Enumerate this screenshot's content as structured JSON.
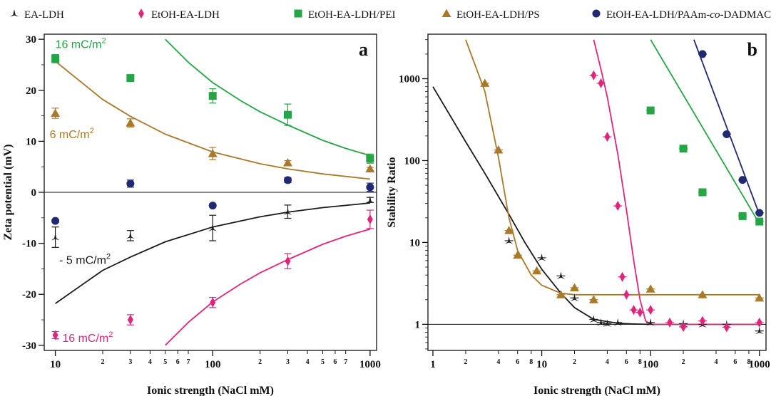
{
  "colors": {
    "EA-LDH": "#1a1a1a",
    "EtOH-EA-LDH": "#e0267a",
    "EtOH-EA-LDH/PEI": "#25a545",
    "EtOH-EA-LDH/PS": "#a87a2a",
    "EtOH-EA-LDH/PAAm-co-DADMAC": "#1f2a70"
  },
  "legend": [
    {
      "key": "EA-LDH",
      "text": "EA-LDH",
      "marker": "star"
    },
    {
      "key": "EtOH-EA-LDH",
      "text": "EtOH-EA-LDH",
      "marker": "diamond"
    },
    {
      "key": "EtOH-EA-LDH/PEI",
      "text": "EtOH-EA-LDH/PEI",
      "marker": "square"
    },
    {
      "key": "EtOH-EA-LDH/PS",
      "text": "EtOH-EA-LDH/PS",
      "marker": "triangle"
    },
    {
      "key": "EtOH-EA-LDH/PAAm-co-DADMAC",
      "text_prefix": "EtOH-EA-LDH/PAAm-",
      "text_italic": "co",
      "text_suffix": "-DADMAC",
      "marker": "circle"
    }
  ],
  "chart_data": [
    {
      "type": "scatter",
      "panel_label": "a",
      "xlabel": "Ionic strength (NaCl mM)",
      "ylabel": "Zeta potential (mV)",
      "xscale": "log",
      "xlim": [
        8.5,
        1100
      ],
      "ylim": [
        -31,
        31
      ],
      "x_major_ticks": [
        10,
        100,
        1000
      ],
      "x_major_labels": [
        "10",
        "100",
        "1000"
      ],
      "x_minor_ticks": [
        20,
        30,
        40,
        50,
        60,
        70,
        200,
        300,
        400,
        500,
        600,
        700
      ],
      "x_minor_labels": [
        "2",
        "3",
        "4",
        "5",
        "6",
        "7",
        "2",
        "3",
        "4",
        "5",
        "6",
        "7"
      ],
      "y_ticks": [
        -30,
        -20,
        -10,
        0,
        10,
        20,
        30
      ],
      "y_tick_labels": [
        "-30",
        "-20",
        "-10",
        "0",
        "10",
        "20",
        "30"
      ],
      "reference_line_y": 0,
      "series": [
        {
          "key": "EA-LDH",
          "marker": "star",
          "x": [
            10,
            30,
            100,
            300,
            1000
          ],
          "y": [
            -8.8,
            -8.5,
            -7,
            -3.8,
            -1.5
          ],
          "err": [
            2,
            1,
            2.5,
            1.3,
            0.5
          ]
        },
        {
          "key": "EtOH-EA-LDH",
          "marker": "diamond",
          "x": [
            10,
            30,
            100,
            300,
            1000
          ],
          "y": [
            -28,
            -25,
            -21.6,
            -13.5,
            -5.3
          ],
          "err": [
            0.7,
            1,
            1,
            1.5,
            1.8
          ]
        },
        {
          "key": "EtOH-EA-LDH/PEI",
          "marker": "square",
          "x": [
            10,
            30,
            100,
            300,
            1000
          ],
          "y": [
            26.2,
            22.4,
            18.9,
            15.2,
            6.6
          ],
          "err": [
            0.8,
            0.4,
            1.4,
            2.1,
            0.9
          ]
        },
        {
          "key": "EtOH-EA-LDH/PS",
          "marker": "triangle",
          "x": [
            10,
            30,
            100,
            300,
            1000
          ],
          "y": [
            15.5,
            13.6,
            7.6,
            5.8,
            4.6
          ],
          "err": [
            1,
            0.8,
            1.2,
            0.4,
            0.3
          ]
        },
        {
          "key": "EtOH-EA-LDH/PAAm-co-DADMAC",
          "marker": "circle",
          "x": [
            10,
            30,
            100,
            300,
            1000
          ],
          "y": [
            -5.6,
            1.7,
            -2.6,
            2.4,
            1
          ],
          "err": [
            0.3,
            0.7,
            0.3,
            0.5,
            0.8
          ]
        }
      ],
      "fit_curves": [
        {
          "key": "EA-LDH",
          "x": [
            10,
            20,
            30,
            50,
            100,
            200,
            300,
            500,
            1000
          ],
          "y": [
            -21.8,
            -15.3,
            -12.7,
            -9.7,
            -6.8,
            -4.8,
            -3.9,
            -3,
            -2.1
          ]
        },
        {
          "key": "EtOH-EA-LDH",
          "x": [
            50,
            70,
            100,
            150,
            200,
            300,
            500,
            700,
            1000
          ],
          "y": [
            -30,
            -25.5,
            -21.5,
            -18,
            -15.8,
            -13.2,
            -10.2,
            -8.6,
            -7.2
          ]
        },
        {
          "key": "EtOH-EA-LDH/PEI",
          "x": [
            50,
            70,
            100,
            150,
            200,
            300,
            500,
            700,
            1000
          ],
          "y": [
            30,
            25.5,
            21.5,
            18,
            15.8,
            13.2,
            10.2,
            8.6,
            7.2
          ]
        },
        {
          "key": "EtOH-EA-LDH/PS",
          "x": [
            10,
            20,
            30,
            50,
            100,
            200,
            300,
            500,
            1000
          ],
          "y": [
            25.7,
            18.2,
            14.9,
            11.4,
            7.9,
            5.6,
            4.6,
            3.6,
            2.6
          ]
        }
      ],
      "annotations": [
        {
          "key": "EtOH-EA-LDH/PEI",
          "text": "16 mC/m",
          "sup": "2",
          "x": 10,
          "y": 28.3
        },
        {
          "key": "EtOH-EA-LDH/PS",
          "text": "6 mC/m",
          "sup": "2",
          "x": 9.2,
          "y": 10.6
        },
        {
          "key": "EA-LDH",
          "text": "- 5 mC/m",
          "sup": "2",
          "x": 10.6,
          "y": -14
        },
        {
          "key": "EtOH-EA-LDH",
          "text": "- 16 mC/m",
          "sup": "2",
          "x": 10,
          "y": -29.3
        }
      ]
    },
    {
      "type": "scatter",
      "panel_label": "b",
      "xlabel": "Ionic strength (NaCl mM)",
      "ylabel": "Stability Ratio",
      "xscale": "log",
      "yscale": "log",
      "xlim": [
        0.9,
        1150
      ],
      "ylim": [
        0.48,
        3500
      ],
      "x_major_ticks": [
        1,
        10,
        100,
        1000
      ],
      "x_major_labels": [
        "1",
        "10",
        "100",
        "1000"
      ],
      "x_minor_ticks": [
        2,
        4,
        6,
        8,
        20,
        40,
        60,
        80,
        200,
        400,
        600,
        800
      ],
      "x_minor_labels": [
        "2",
        "4",
        "6",
        "8",
        "2",
        "4",
        "6",
        "8",
        "2",
        "4",
        "6",
        "8"
      ],
      "y_ticks": [
        1,
        10,
        100,
        1000
      ],
      "y_tick_labels": [
        "1",
        "10",
        "100",
        "1000"
      ],
      "reference_line_y": 1,
      "series": [
        {
          "key": "EA-LDH",
          "marker": "star",
          "x": [
            5,
            10,
            15,
            20,
            30,
            35,
            40,
            50,
            100,
            200,
            300,
            500,
            1000
          ],
          "y": [
            10.5,
            6.5,
            3.9,
            2.1,
            1.15,
            1.05,
            1.02,
            1.05,
            1.05,
            1.02,
            1.0,
            1.0,
            0.83
          ]
        },
        {
          "key": "EtOH-EA-LDH",
          "marker": "diamond",
          "x": [
            30,
            35,
            40,
            50,
            55,
            60,
            70,
            80,
            100,
            150,
            200,
            300,
            500,
            1000
          ],
          "y": [
            1100,
            880,
            195,
            28,
            3.8,
            2.3,
            1.5,
            1.4,
            1.5,
            1.05,
            0.93,
            1.1,
            0.92,
            1.05
          ]
        },
        {
          "key": "EtOH-EA-LDH/PEI",
          "marker": "square",
          "x": [
            100,
            200,
            300,
            700,
            1000
          ],
          "y": [
            410,
            140,
            41,
            21,
            18
          ]
        },
        {
          "key": "EtOH-EA-LDH/PS",
          "marker": "triangle",
          "x": [
            3,
            4,
            5,
            6,
            9,
            15,
            20,
            30,
            100,
            300,
            1000
          ],
          "y": [
            880,
            135,
            14,
            7,
            4.5,
            2.3,
            2.8,
            2,
            2.7,
            2.3,
            2.1
          ]
        },
        {
          "key": "EtOH-EA-LDH/PAAm-co-DADMAC",
          "marker": "circle",
          "x": [
            300,
            500,
            700,
            1000
          ],
          "y": [
            2000,
            210,
            58,
            23
          ]
        }
      ],
      "fit_curves": [
        {
          "key": "EA-LDH",
          "x": [
            1,
            2,
            3,
            5,
            7,
            10,
            15,
            20,
            30,
            50,
            70,
            100,
            1000
          ],
          "y": [
            800,
            170,
            70,
            22,
            10,
            4.7,
            2.4,
            1.6,
            1.15,
            1.03,
            1.01,
            1.0,
            1.0
          ]
        },
        {
          "key": "EtOH-EA-LDH",
          "x": [
            30,
            35,
            40,
            50,
            60,
            70,
            80,
            90,
            100,
            1000
          ],
          "y": [
            3000,
            1300,
            600,
            120,
            25,
            6,
            2,
            1.1,
            1.0,
            1.0
          ]
        },
        {
          "key": "EtOH-EA-LDH/PEI",
          "x": [
            100,
            1000
          ],
          "y": [
            3000,
            17
          ]
        },
        {
          "key": "EtOH-EA-LDH/PS",
          "x": [
            2,
            3,
            4,
            5,
            6,
            8,
            10,
            15,
            20,
            1000
          ],
          "y": [
            3000,
            700,
            110,
            20,
            8,
            4,
            3,
            2.4,
            2.3,
            2.3
          ]
        },
        {
          "key": "EtOH-EA-LDH/PAAm-co-DADMAC",
          "x": [
            250,
            1000
          ],
          "y": [
            3000,
            22
          ]
        }
      ],
      "annotations": []
    }
  ]
}
